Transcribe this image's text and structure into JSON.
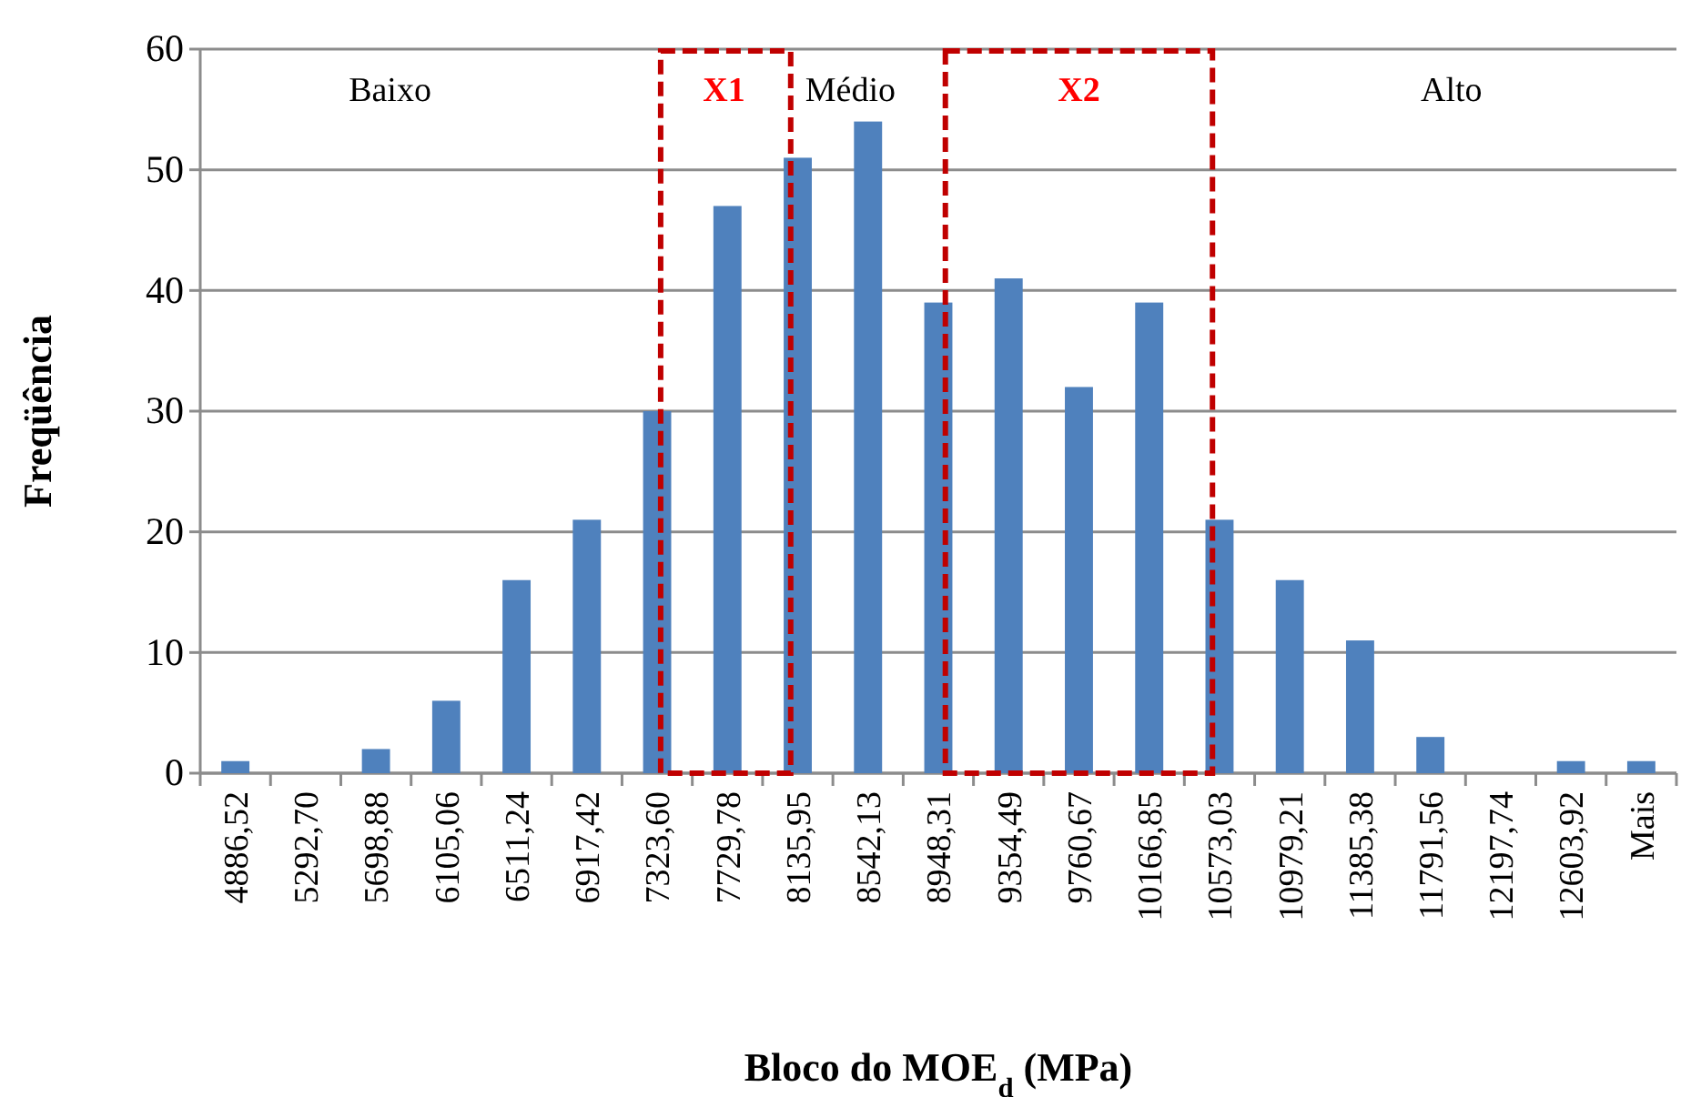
{
  "chart_data": {
    "type": "bar",
    "xlabel": "Bloco do MOE$_{d}$ (MPa)",
    "ylabel": "Freqüência",
    "categories": [
      "4886,52",
      "5292,70",
      "5698,88",
      "6105,06",
      "6511,24",
      "6917,42",
      "7323,60",
      "7729,78",
      "8135,95",
      "8542,13",
      "8948,31",
      "9354,49",
      "9760,67",
      "10166,85",
      "10573,03",
      "10979,21",
      "11385,38",
      "11791,56",
      "12197,74",
      "12603,92",
      "Mais"
    ],
    "values": [
      1,
      0,
      2,
      6,
      16,
      21,
      30,
      47,
      51,
      54,
      39,
      41,
      32,
      39,
      21,
      16,
      11,
      3,
      0,
      1,
      1
    ],
    "color": "#4f81bd",
    "ylim": [
      0,
      60
    ],
    "yticks": [
      0,
      10,
      20,
      30,
      40,
      50,
      60
    ],
    "grid": "y",
    "annotations": [
      "Baixo",
      "X1",
      "Médio",
      "X2",
      "Alto"
    ]
  }
}
